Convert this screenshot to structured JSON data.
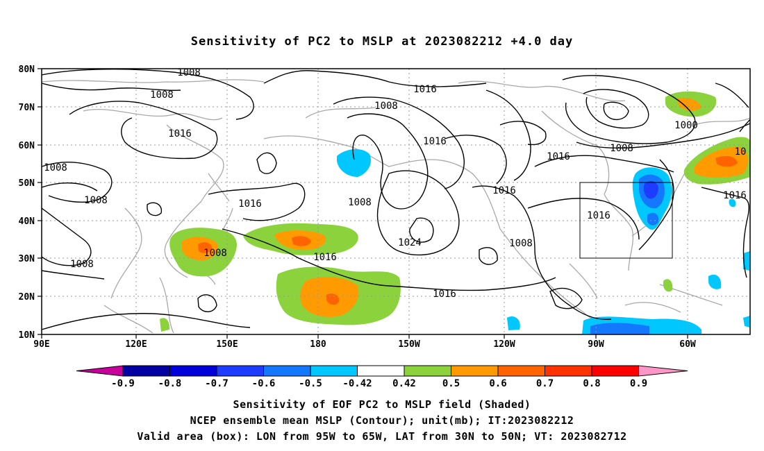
{
  "title": "Sensitivity of PC2 to MSLP at 2023082212 +4.0 day",
  "map": {
    "lat_labels": [
      "80N",
      "70N",
      "60N",
      "50N",
      "40N",
      "30N",
      "20N",
      "10N"
    ],
    "lon_labels": [
      "90E",
      "120E",
      "150E",
      "180",
      "150W",
      "120W",
      "90W",
      "60W"
    ],
    "contour_labels": [
      "1008",
      "1008",
      "1016",
      "1008",
      "1008",
      "1016",
      "1008",
      "1016",
      "1016",
      "1008",
      "1016",
      "1008",
      "1024",
      "1016",
      "1016",
      "1016",
      "1008",
      "1016",
      "1000",
      "10",
      "1016",
      "1008"
    ],
    "valid_box": {
      "lon_from": "95W",
      "lon_to": "65W",
      "lat_from": "30N",
      "lat_to": "50N"
    }
  },
  "colorbar": {
    "labels": [
      "-0.9",
      "-0.8",
      "-0.7",
      "-0.6",
      "-0.5",
      "-0.42",
      "0.42",
      "0.5",
      "0.6",
      "0.7",
      "0.8",
      "0.9"
    ],
    "colors": [
      "#0000a0",
      "#0000d8",
      "#1e3cff",
      "#1478ff",
      "#00c8ff",
      "#ffffff",
      "#8cd23c",
      "#ff9b00",
      "#ff6400",
      "#ff3200",
      "#ff0000"
    ],
    "low_end_color": "#c8009b",
    "high_end_color": "#ff96c8"
  },
  "captions": {
    "line1": "Sensitivity of EOF PC2 to MSLP field (Shaded)",
    "line2": "NCEP ensemble mean MSLP (Contour); unit(mb); IT:2023082212",
    "line3": "Valid area (box): LON from 95W to 65W, LAT from 30N to 50N; VT: 2023082712"
  }
}
